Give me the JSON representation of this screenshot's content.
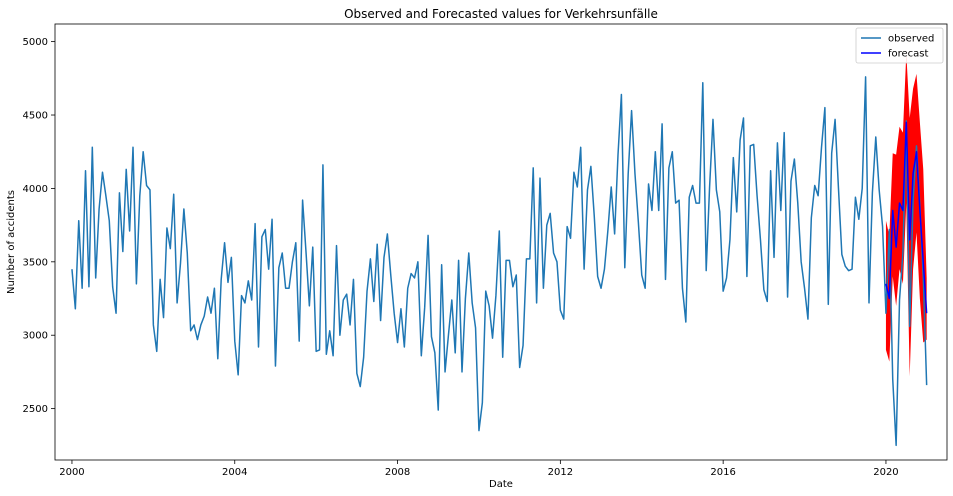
{
  "chart_data": {
    "type": "line",
    "title": "Observed and Forecasted values for Verkehrsunfälle",
    "xlabel": "Date",
    "ylabel": "Number of accidents",
    "xlim": [
      "1999-08",
      "2021-07"
    ],
    "ylim": [
      2150,
      5120
    ],
    "x_ticks": [
      "2000",
      "2004",
      "2008",
      "2012",
      "2016",
      "2020"
    ],
    "y_ticks": [
      2500,
      3000,
      3500,
      4000,
      4500,
      5000
    ],
    "legend": {
      "position": "top-right",
      "entries": [
        "observed",
        "forecast"
      ]
    },
    "colors": {
      "observed": "#1f77b4",
      "forecast": "#0000ff",
      "confidence_band": "#ff0000"
    },
    "series": [
      {
        "name": "observed",
        "start": "2000-01",
        "frequency": "monthly",
        "values": [
          3450,
          3180,
          3780,
          3320,
          4120,
          3330,
          4280,
          3390,
          3860,
          4110,
          3950,
          3780,
          3330,
          3150,
          3970,
          3570,
          4130,
          3710,
          4280,
          3350,
          3950,
          4250,
          4020,
          3990,
          3070,
          2890,
          3380,
          3120,
          3730,
          3590,
          3960,
          3220,
          3490,
          3860,
          3560,
          3030,
          3070,
          2970,
          3070,
          3130,
          3260,
          3150,
          3320,
          2840,
          3380,
          3630,
          3360,
          3530,
          2960,
          2730,
          3270,
          3220,
          3370,
          3240,
          3760,
          2920,
          3670,
          3720,
          3450,
          3790,
          2790,
          3460,
          3560,
          3320,
          3320,
          3500,
          3630,
          2960,
          3920,
          3570,
          3200,
          3600,
          2890,
          2900,
          4160,
          2870,
          3030,
          2860,
          3610,
          3000,
          3240,
          3280,
          3070,
          3380,
          2740,
          2650,
          2850,
          3300,
          3520,
          3230,
          3620,
          3100,
          3530,
          3690,
          3410,
          3150,
          2950,
          3180,
          2920,
          3320,
          3420,
          3390,
          3500,
          2860,
          3190,
          3680,
          2990,
          2880,
          2490,
          3480,
          2750,
          3000,
          3240,
          2880,
          3510,
          2750,
          3250,
          3560,
          3220,
          3050,
          2350,
          2540,
          3300,
          3200,
          2980,
          3270,
          3710,
          2850,
          3510,
          3510,
          3330,
          3410,
          2780,
          2930,
          3520,
          3520,
          4140,
          3220,
          4070,
          3320,
          3750,
          3830,
          3560,
          3500,
          3170,
          3110,
          3740,
          3660,
          4110,
          4010,
          4280,
          3450,
          3990,
          4150,
          3810,
          3400,
          3320,
          3450,
          3710,
          4010,
          3690,
          4230,
          4640,
          3460,
          4100,
          4530,
          4100,
          3770,
          3410,
          3320,
          4030,
          3850,
          4250,
          3850,
          4440,
          3380,
          4140,
          4250,
          3900,
          3920,
          3320,
          3090,
          3940,
          4020,
          3900,
          3900,
          4720,
          3440,
          4010,
          4470,
          3990,
          3840,
          3300,
          3390,
          3650,
          4210,
          3840,
          4330,
          4480,
          3400,
          4290,
          4300,
          3950,
          3650,
          3310,
          3230,
          4120,
          3530,
          4310,
          3850,
          4380,
          3260,
          4050,
          4200,
          3900,
          3500,
          3320,
          3110,
          3800,
          4020,
          3950,
          4280,
          4550,
          3210,
          4240,
          4470,
          4000,
          3550,
          3470,
          3440,
          3450,
          3940,
          3790,
          4000,
          4760,
          3220,
          3970,
          4350,
          3990,
          3740,
          3150,
          3720,
          2700,
          2250,
          3240,
          3560,
          4460,
          3060,
          3920,
          4290,
          3880,
          3400,
          2660
        ]
      },
      {
        "name": "forecast",
        "start": "2020-01",
        "frequency": "monthly",
        "values": [
          3350,
          3250,
          3850,
          3600,
          3900,
          3850,
          4450,
          3650,
          4100,
          4250,
          3850,
          3500,
          3150
        ],
        "lower": [
          2900,
          2820,
          3400,
          3200,
          3450,
          3350,
          3900,
          2720,
          3450,
          3700,
          3250,
          2950,
          2970
        ],
        "upper": [
          3780,
          3680,
          4240,
          4230,
          4420,
          4380,
          4920,
          4480,
          4680,
          4780,
          4450,
          4130,
          3390
        ]
      }
    ]
  }
}
